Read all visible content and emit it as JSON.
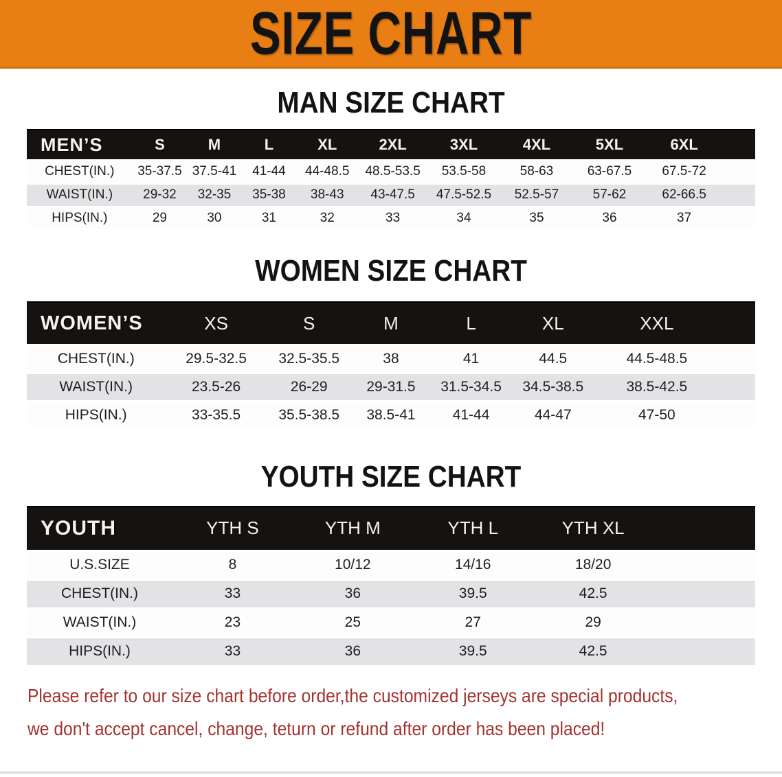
{
  "banner": {
    "title": "SIZE CHART"
  },
  "colors": {
    "banner-bg": "#E87E14",
    "bar-bg": "#161210",
    "row-gray": "#E3E3E5",
    "red": "#A33230"
  },
  "sections": [
    {
      "title": "MAN SIZE CHART",
      "header_label": "MEN’S",
      "columns": [
        "S",
        "M",
        "L",
        "XL",
        "2XL",
        "3XL",
        "4XL",
        "5XL",
        "6XL"
      ],
      "rows": [
        {
          "label": "CHEST(IN.)",
          "values": [
            "35-37.5",
            "37.5-41",
            "41-44",
            "44-48.5",
            "48.5-53.5",
            "53.5-58",
            "58-63",
            "63-67.5",
            "67.5-72"
          ]
        },
        {
          "label": "WAIST(IN.)",
          "values": [
            "29-32",
            "32-35",
            "35-38",
            "38-43",
            "43-47.5",
            "47.5-52.5",
            "52.5-57",
            "57-62",
            "62-66.5"
          ]
        },
        {
          "label": "HIPS(IN.)",
          "values": [
            "29",
            "30",
            "31",
            "32",
            "33",
            "34",
            "35",
            "36",
            "37"
          ]
        }
      ]
    },
    {
      "title": "WOMEN SIZE CHART",
      "header_label": "WOMEN’S",
      "columns": [
        "XS",
        "S",
        "M",
        "L",
        "XL",
        "XXL"
      ],
      "rows": [
        {
          "label": "CHEST(IN.)",
          "values": [
            "29.5-32.5",
            "32.5-35.5",
            "38",
            "41",
            "44.5",
            "44.5-48.5"
          ]
        },
        {
          "label": "WAIST(IN.)",
          "values": [
            "23.5-26",
            "26-29",
            "29-31.5",
            "31.5-34.5",
            "34.5-38.5",
            "38.5-42.5"
          ]
        },
        {
          "label": "HIPS(IN.)",
          "values": [
            "33-35.5",
            "35.5-38.5",
            "38.5-41",
            "41-44",
            "44-47",
            "47-50"
          ]
        }
      ]
    },
    {
      "title": "YOUTH SIZE CHART",
      "header_label": "YOUTH",
      "columns": [
        "YTH S",
        "YTH M",
        "YTH L",
        "YTH XL"
      ],
      "rows": [
        {
          "label": "U.S.SIZE",
          "values": [
            "8",
            "10/12",
            "14/16",
            "18/20"
          ]
        },
        {
          "label": "CHEST(IN.)",
          "values": [
            "33",
            "36",
            "39.5",
            "42.5"
          ]
        },
        {
          "label": "WAIST(IN.)",
          "values": [
            "23",
            "25",
            "27",
            "29"
          ]
        },
        {
          "label": "HIPS(IN.)",
          "values": [
            "33",
            "36",
            "39.5",
            "42.5"
          ]
        }
      ]
    }
  ],
  "disclaimer": {
    "line1": "Please refer to our size chart before order,the customized jerseys are special products,",
    "line2": "we don't accept cancel, change, teturn or refund after order has been placed!"
  }
}
